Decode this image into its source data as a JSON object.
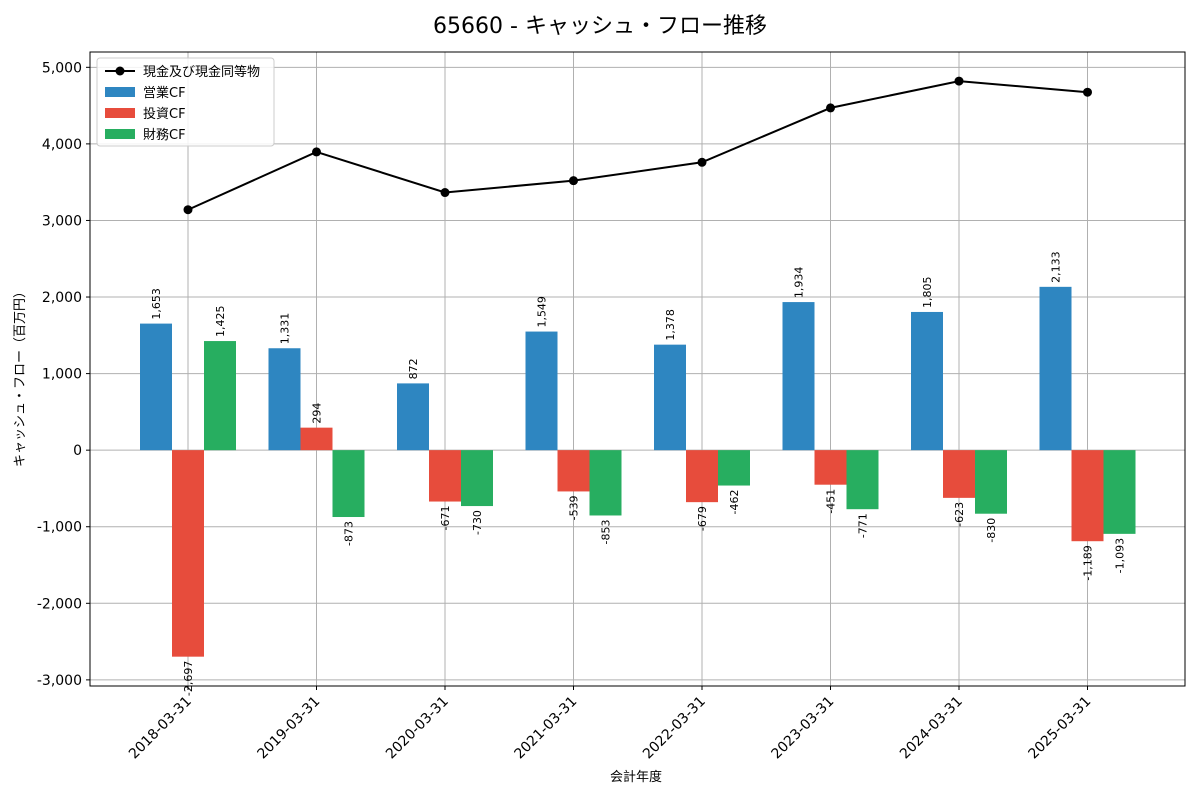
{
  "chart_data": {
    "type": "bar",
    "title": "65660 - キャッシュ・フロー推移",
    "xlabel": "会計年度",
    "ylabel": "キャッシュ・フロー（百万円）",
    "ylim": [
      -3080,
      5200
    ],
    "yticks": [
      -3000,
      -2000,
      -1000,
      0,
      1000,
      2000,
      3000,
      4000,
      5000
    ],
    "ytick_labels": [
      "-3,000",
      "-2,000",
      "-1,000",
      "0",
      "1,000",
      "2,000",
      "3,000",
      "4,000",
      "5,000"
    ],
    "grid": true,
    "legend_position": "top-left",
    "categories": [
      "2018-03-31",
      "2019-03-31",
      "2020-03-31",
      "2021-03-31",
      "2022-03-31",
      "2023-03-31",
      "2024-03-31",
      "2025-03-31"
    ],
    "series": [
      {
        "name": "営業CF",
        "kind": "bar",
        "color": "#2e86c1",
        "values": [
          1653,
          1331,
          872,
          1549,
          1378,
          1934,
          1805,
          2133
        ],
        "labels": [
          "1,653",
          "1,331",
          "872",
          "1,549",
          "1,378",
          "1,934",
          "1,805",
          "2,133"
        ]
      },
      {
        "name": "投資CF",
        "kind": "bar",
        "color": "#e74c3c",
        "values": [
          -2697,
          294,
          -671,
          -539,
          -679,
          -451,
          -623,
          -1189
        ],
        "labels": [
          "-2,697",
          "294",
          "-671",
          "-539",
          "-679",
          "-451",
          "-623",
          "-1,189"
        ]
      },
      {
        "name": "財務CF",
        "kind": "bar",
        "color": "#27ae60",
        "values": [
          1425,
          -873,
          -730,
          -853,
          -462,
          -771,
          -830,
          -1093
        ],
        "labels": [
          "1,425",
          "-873",
          "-730",
          "-853",
          "-462",
          "-771",
          "-830",
          "-1,093"
        ]
      },
      {
        "name": "現金及び現金同等物",
        "kind": "line",
        "color": "#000000",
        "values": [
          3140,
          3895,
          3365,
          3520,
          3760,
          4470,
          4820,
          4675
        ]
      }
    ],
    "legend_order": [
      "現金及び現金同等物",
      "営業CF",
      "投資CF",
      "財務CF"
    ]
  }
}
